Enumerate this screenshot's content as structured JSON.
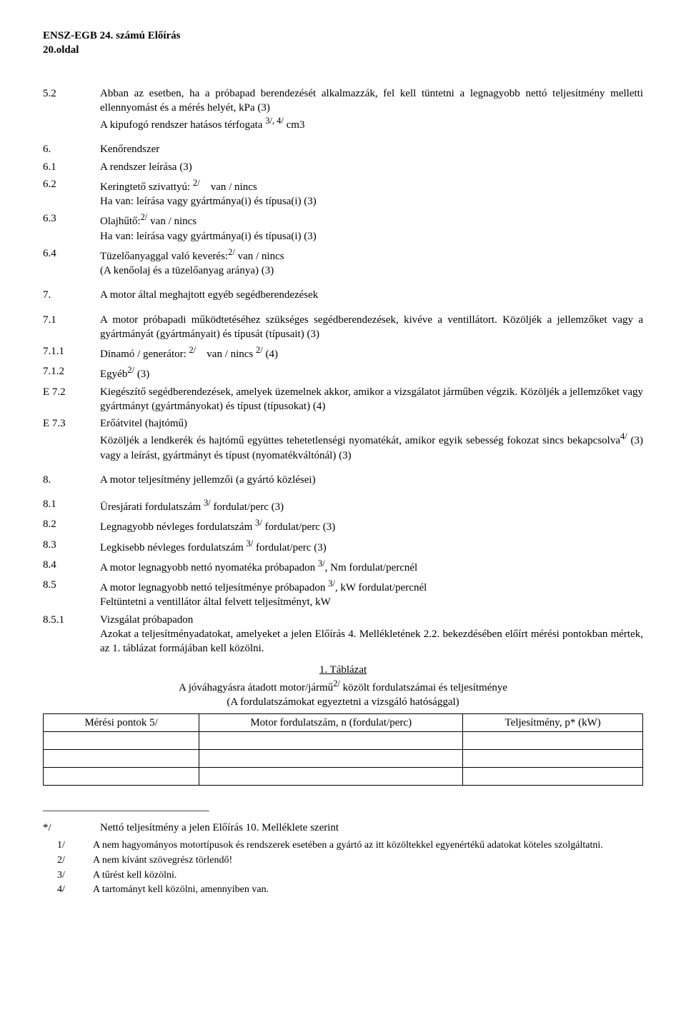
{
  "header": {
    "line1": "ENSZ-EGB 24. számú Előírás",
    "line2": "20.oldal"
  },
  "sections": [
    {
      "num": "5.2",
      "body": "Abban az esetben, ha a próbapad berendezését alkalmazzák, fel kell tüntetni a legnagyobb nettó teljesítmény melletti ellennyomást és a mérés helyét, kPa (3)\nA kipufogó rendszer hatásos térfogata 3/, 4/ cm3"
    },
    {
      "num": "6.",
      "body": "Kenőrendszer"
    },
    {
      "num": "6.1",
      "body": "A rendszer leírása (3)"
    },
    {
      "num": "6.2",
      "body": "Keringtető szivattyú: 2/ van / nincs\nHa van: leírása vagy gyártmánya(i) és típusa(i) (3)"
    },
    {
      "num": "6.3",
      "body": "Olajhűtő:2/ van / nincs\nHa van: leírása vagy gyártmánya(i) és típusa(i) (3)"
    },
    {
      "num": "6.4",
      "body": "Tüzelőanyaggal való keverés:2/ van / nincs\n(A kenőolaj és a tüzelőanyag aránya) (3)"
    },
    {
      "num": "7.",
      "body": "A motor által meghajtott egyéb segédberendezések"
    },
    {
      "num": "7.1",
      "body": "A motor próbapadi működtetéséhez szükséges segédberendezések, kivéve a ventillátort. Közöljék a jellemzőket vagy a gyártmányát (gyártmányait) és típusát (típusait) (3)"
    },
    {
      "num": "7.1.1",
      "body": "Dinamó / generátor: 2/ van / nincs 2/ (4)"
    },
    {
      "num": "7.1.2",
      "body": "Egyéb2/ (3)"
    },
    {
      "num": "E 7.2",
      "body": "Kiegészítő segédberendezések, amelyek üzemelnek akkor, amikor a vizsgálatot járműben végzik. Közöljék a jellemzőket vagy gyártmányt (gyártmányokat) és típust (típusokat) (4)"
    },
    {
      "num": "E 7.3",
      "body": "Erőátvitel (hajtómű)\nKözöljék a lendkerék és hajtómű együttes tehetetlenségi nyomatékát, amikor egyik sebesség fokozat sincs bekapcsolva4/ (3) vagy a leírást, gyártmányt és típust (nyomatékváltónál) (3)"
    },
    {
      "num": "8.",
      "body": "A motor teljesítmény jellemzői (a gyártó közlései)"
    },
    {
      "num": "8.1",
      "body": "Üresjárati fordulatszám 3/ fordulat/perc (3)"
    },
    {
      "num": "8.2",
      "body": "Legnagyobb névleges fordulatszám 3/ fordulat/perc (3)"
    },
    {
      "num": "8.3",
      "body": "Legkisebb névleges fordulatszám 3/ fordulat/perc (3)"
    },
    {
      "num": "8.4",
      "body": "A motor legnagyobb nettó nyomatéka próbapadon 3/, Nm fordulat/percnél"
    },
    {
      "num": "8.5",
      "body": "A motor legnagyobb nettó teljesítménye próbapadon 3/, kW fordulat/percnél\nFeltüntetni a ventillátor által felvett teljesítményt, kW"
    },
    {
      "num": "8.5.1",
      "body": "Vizsgálat próbapadon\nAzokat a teljesítményadatokat, amelyeket a jelen Előírás 4. Mellékletének 2.2. bekezdésében előírt mérési pontokban mértek, az 1. táblázat formájában kell közölni."
    }
  ],
  "table": {
    "title": "1. Táblázat",
    "caption1": "A jóváhagyásra átadott motor/jármű2/ közölt fordulatszámai és teljesítménye",
    "caption2": "(A fordulatszámokat egyeztetni a vizsgáló hatósággal)",
    "columns": [
      "Mérési pontok 5/",
      "Motor fordulatszám, n (fordulat/perc)",
      "Teljesítmény, p* (kW)"
    ],
    "rows": [
      [
        "",
        "",
        ""
      ],
      [
        "",
        "",
        ""
      ],
      [
        "",
        "",
        ""
      ]
    ]
  },
  "divider": "_______________________________",
  "big_footnote": {
    "num": "*/",
    "body": "Nettó teljesítmény a jelen Előírás 10. Melléklete szerint"
  },
  "footnotes": [
    {
      "num": "1/",
      "body": "A nem hagyományos motortípusok és rendszerek esetében a gyártó az itt közöltekkel egyenértékű adatokat köteles szolgáltatni."
    },
    {
      "num": "2/",
      "body": "A nem kívánt szövegrész törlendő!"
    },
    {
      "num": "3/",
      "body": "A tűrést kell közölni."
    },
    {
      "num": "4/",
      "body": "A tartományt kell közölni, amennyiben van."
    }
  ]
}
